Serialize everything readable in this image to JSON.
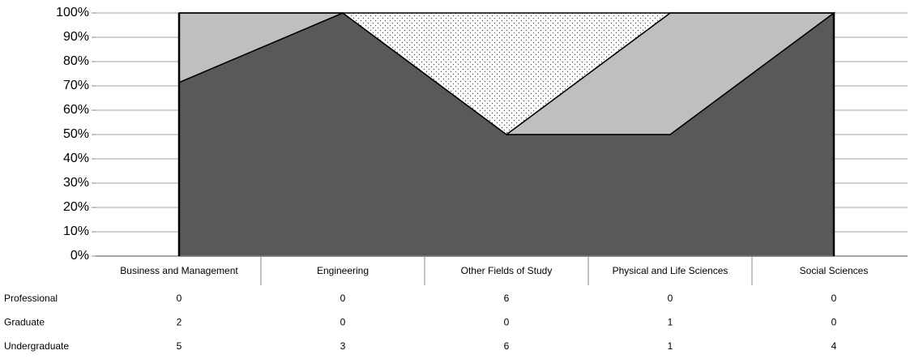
{
  "chart_data": {
    "type": "area",
    "stacked": "percent",
    "categories": [
      "Business and Management",
      "Engineering",
      "Other Fields of Study",
      "Physical and Life Sciences",
      "Social Sciences"
    ],
    "series": [
      {
        "name": "Professional",
        "color": "#ffffff",
        "pattern": "dots",
        "values": [
          0,
          0,
          6,
          0,
          0
        ]
      },
      {
        "name": "Graduate",
        "color": "#bfbfbf",
        "values": [
          2,
          0,
          0,
          1,
          0
        ]
      },
      {
        "name": "Undergraduate",
        "color": "#595959",
        "values": [
          5,
          3,
          6,
          1,
          4
        ]
      }
    ],
    "ylim": [
      0,
      100
    ],
    "yticks": [
      {
        "value": 0,
        "label": "0%"
      },
      {
        "value": 10,
        "label": "10%"
      },
      {
        "value": 20,
        "label": "20%"
      },
      {
        "value": 30,
        "label": "30%"
      },
      {
        "value": 40,
        "label": "40%"
      },
      {
        "value": 50,
        "label": "50%"
      },
      {
        "value": 60,
        "label": "60%"
      },
      {
        "value": 70,
        "label": "70%"
      },
      {
        "value": 80,
        "label": "80%"
      },
      {
        "value": 90,
        "label": "90%"
      },
      {
        "value": 100,
        "label": "100%"
      }
    ],
    "grid": true
  }
}
